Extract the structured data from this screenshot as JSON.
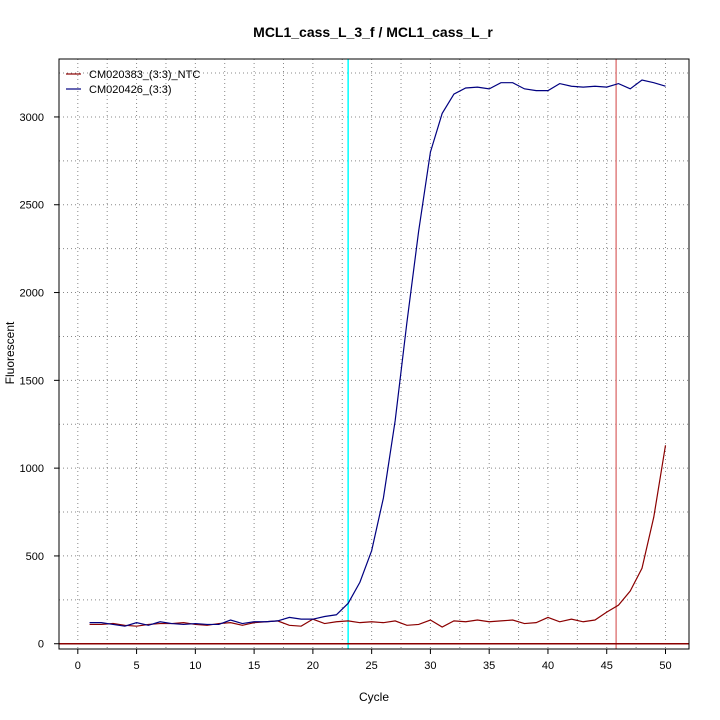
{
  "chart_data": {
    "type": "line",
    "title": "MCL1_cass_L_3_f / MCL1_cass_L_r",
    "xlabel": "Cycle",
    "ylabel": "Fluorescent",
    "xlim": [
      -1.6,
      52
    ],
    "ylim": [
      -30,
      3330
    ],
    "x_ticks": [
      0,
      5,
      10,
      15,
      20,
      25,
      30,
      35,
      40,
      45,
      50
    ],
    "y_ticks": [
      0,
      500,
      1000,
      1500,
      2000,
      2500,
      3000
    ],
    "grid": true,
    "legend_position": "top-left",
    "threshold_y": 0,
    "vlines": [
      {
        "x": 23,
        "color": "#00ffff"
      },
      {
        "x": 45.8,
        "color": "#e08080"
      }
    ],
    "series": [
      {
        "name": "CM020383_(3:3)_NTC",
        "color": "#8b0000",
        "x": [
          1,
          2,
          3,
          4,
          5,
          6,
          7,
          8,
          9,
          10,
          11,
          12,
          13,
          14,
          15,
          16,
          17,
          18,
          19,
          20,
          21,
          22,
          23,
          24,
          25,
          26,
          27,
          28,
          29,
          30,
          31,
          32,
          33,
          34,
          35,
          36,
          37,
          38,
          39,
          40,
          41,
          42,
          43,
          44,
          45,
          46,
          47,
          48,
          49,
          50
        ],
        "values": [
          110,
          110,
          115,
          105,
          100,
          110,
          115,
          115,
          120,
          110,
          105,
          115,
          120,
          105,
          120,
          125,
          130,
          105,
          100,
          140,
          115,
          125,
          130,
          120,
          125,
          120,
          130,
          105,
          110,
          135,
          95,
          130,
          125,
          135,
          125,
          130,
          135,
          115,
          120,
          150,
          125,
          140,
          125,
          135,
          180,
          220,
          300,
          430,
          720,
          1130
        ]
      },
      {
        "name": "CM020426_(3:3)",
        "color": "#000080",
        "x": [
          1,
          2,
          3,
          4,
          5,
          6,
          7,
          8,
          9,
          10,
          11,
          12,
          13,
          14,
          15,
          16,
          17,
          18,
          19,
          20,
          21,
          22,
          23,
          24,
          25,
          26,
          27,
          28,
          29,
          30,
          31,
          32,
          33,
          34,
          35,
          36,
          37,
          38,
          39,
          40,
          41,
          42,
          43,
          44,
          45,
          46,
          47,
          48,
          49,
          50
        ],
        "values": [
          120,
          120,
          110,
          100,
          120,
          105,
          125,
          115,
          110,
          115,
          110,
          110,
          135,
          115,
          125,
          125,
          130,
          150,
          140,
          140,
          155,
          165,
          230,
          350,
          530,
          830,
          1270,
          1830,
          2350,
          2800,
          3020,
          3130,
          3165,
          3170,
          3160,
          3195,
          3195,
          3160,
          3150,
          3150,
          3190,
          3175,
          3170,
          3175,
          3170,
          3190,
          3160,
          3210,
          3195,
          3175
        ]
      }
    ]
  }
}
